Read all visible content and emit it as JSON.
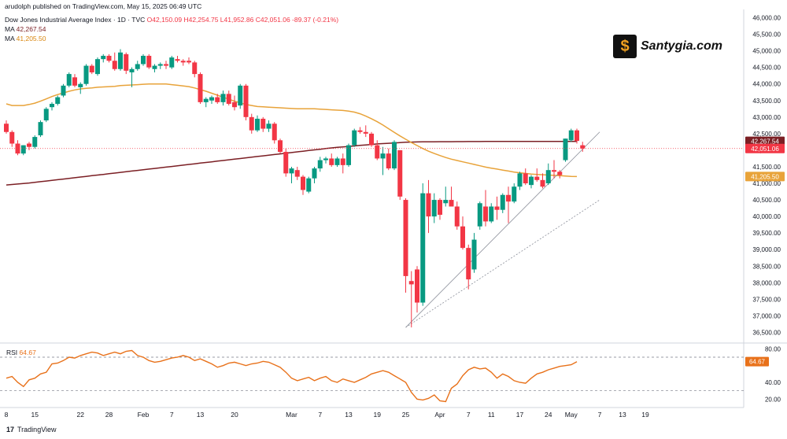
{
  "header": {
    "published": "arudolph published on TradingView.com, May 15, 2025 06:49 UTC",
    "symbol": "Dow Jones Industrial Average Index · 1D · TVC",
    "open": "O42,150.09",
    "high": "H42,254.75",
    "low": "L41,952.86",
    "close": "C42,051.06",
    "change": "-89.37 (-0.21%)",
    "ma1_label": "MA",
    "ma1_value": "42,267.54",
    "ma2_label": "MA",
    "ma2_value": "41,205.50"
  },
  "watermark": {
    "text": "Santygia.com",
    "glyph": "$"
  },
  "footer": {
    "brand": "TradingView",
    "brand_icon": "17"
  },
  "rsi_panel": {
    "label": "RSI",
    "value": "64.67"
  },
  "colors": {
    "up": "#089981",
    "down": "#f23645",
    "ma200": "#7b1f24",
    "ma50": "#e8a33a",
    "rsi": "#e8711a"
  },
  "chart_data": [
    {
      "type": "candlestick",
      "title": "Dow Jones Industrial Average Index · 1D · TVC",
      "ylim": [
        36250,
        46250
      ],
      "y_ticks": [
        "46,000.00",
        "45,500.00",
        "45,000.00",
        "44,500.00",
        "44,000.00",
        "43,500.00",
        "43,000.00",
        "42,500.00",
        "42,000.00",
        "41,500.00",
        "41,000.00",
        "40,500.00",
        "40,000.00",
        "39,500.00",
        "39,000.00",
        "38,500.00",
        "38,000.00",
        "37,500.00",
        "37,000.00",
        "36,500.00"
      ],
      "x_ticks": [
        "8",
        "15",
        "22",
        "28",
        "Feb",
        "7",
        "13",
        "20",
        "Mar",
        "7",
        "13",
        "19",
        "25",
        "Apr",
        "7",
        "11",
        "17",
        "24",
        "May",
        "7",
        "13",
        "19"
      ],
      "price_labels": [
        {
          "text": "42,267.54",
          "value": 42267.54,
          "color": "#7b1f24"
        },
        {
          "text": "42,051.06",
          "value": 42051.06,
          "color": "#f23645"
        },
        {
          "text": "41,205.50",
          "value": 41205.5,
          "color": "#e8a33a"
        }
      ],
      "candles": [
        [
          42800,
          42900,
          42500,
          42550
        ],
        [
          42550,
          42600,
          42100,
          42200
        ],
        [
          42200,
          42300,
          41850,
          41900
        ],
        [
          41900,
          42150,
          41850,
          42150
        ],
        [
          42200,
          42250,
          42000,
          42100
        ],
        [
          42100,
          42450,
          42050,
          42400
        ],
        [
          42450,
          42900,
          42400,
          42850
        ],
        [
          42900,
          43300,
          42850,
          43250
        ],
        [
          43300,
          43450,
          43200,
          43400
        ],
        [
          43400,
          43650,
          43350,
          43600
        ],
        [
          43650,
          44000,
          43600,
          43950
        ],
        [
          43950,
          44350,
          43900,
          44300
        ],
        [
          44200,
          44300,
          43900,
          43950
        ],
        [
          43900,
          44050,
          43700,
          44000
        ],
        [
          44000,
          44600,
          43950,
          44550
        ],
        [
          44550,
          44600,
          44300,
          44350
        ],
        [
          44300,
          44800,
          44250,
          44750
        ],
        [
          44750,
          44900,
          44650,
          44850
        ],
        [
          44850,
          44900,
          44650,
          44700
        ],
        [
          44700,
          44950,
          44400,
          44450
        ],
        [
          44450,
          45050,
          44400,
          44950
        ],
        [
          44900,
          44950,
          44300,
          44400
        ],
        [
          44350,
          44500,
          43900,
          44450
        ],
        [
          44450,
          44700,
          44400,
          44600
        ],
        [
          44600,
          44900,
          44550,
          44850
        ],
        [
          44850,
          44900,
          44450,
          44500
        ],
        [
          44450,
          44600,
          44350,
          44550
        ],
        [
          44550,
          44650,
          44450,
          44600
        ],
        [
          44600,
          44700,
          44450,
          44550
        ],
        [
          44500,
          44850,
          44450,
          44800
        ],
        [
          44750,
          44850,
          44650,
          44700
        ],
        [
          44700,
          44750,
          44550,
          44650
        ],
        [
          44700,
          44800,
          44600,
          44650
        ],
        [
          44650,
          44700,
          44200,
          44300
        ],
        [
          44300,
          44350,
          43400,
          43450
        ],
        [
          43450,
          43600,
          43300,
          43550
        ],
        [
          43500,
          43650,
          43400,
          43600
        ],
        [
          43600,
          43700,
          43400,
          43450
        ],
        [
          43450,
          43800,
          43350,
          43700
        ],
        [
          43700,
          43800,
          43350,
          43400
        ],
        [
          43450,
          43650,
          43200,
          43300
        ],
        [
          43350,
          44000,
          43250,
          43950
        ],
        [
          43950,
          44000,
          42900,
          43000
        ],
        [
          43000,
          43100,
          42500,
          42600
        ],
        [
          42600,
          43050,
          42550,
          42950
        ],
        [
          42950,
          43000,
          42550,
          42650
        ],
        [
          42650,
          42900,
          42550,
          42800
        ],
        [
          42800,
          42850,
          42200,
          42300
        ],
        [
          42300,
          42350,
          41900,
          41950
        ],
        [
          41950,
          42050,
          41200,
          41300
        ],
        [
          41300,
          41500,
          41000,
          41450
        ],
        [
          41400,
          41500,
          41100,
          41200
        ],
        [
          41200,
          41250,
          40650,
          40800
        ],
        [
          40750,
          41200,
          40700,
          41150
        ],
        [
          41150,
          41500,
          41000,
          41450
        ],
        [
          41450,
          41800,
          41350,
          41700
        ],
        [
          41700,
          41800,
          41600,
          41750
        ],
        [
          41750,
          41900,
          41500,
          41550
        ],
        [
          41550,
          41800,
          41500,
          41750
        ],
        [
          41750,
          41900,
          41300,
          41550
        ],
        [
          41550,
          42200,
          41500,
          42150
        ],
        [
          42150,
          42650,
          42100,
          42600
        ],
        [
          42600,
          42700,
          42500,
          42550
        ],
        [
          42550,
          42750,
          42400,
          42500
        ],
        [
          42500,
          42550,
          42100,
          42150
        ],
        [
          42150,
          42300,
          41700,
          41750
        ],
        [
          41750,
          42100,
          41250,
          41900
        ],
        [
          41900,
          42050,
          41400,
          41450
        ],
        [
          41450,
          42300,
          41400,
          42250
        ],
        [
          42000,
          42000,
          40500,
          40600
        ],
        [
          40500,
          40550,
          37700,
          38200
        ],
        [
          38050,
          38350,
          36650,
          37950
        ],
        [
          38400,
          38500,
          37100,
          37400
        ],
        [
          37400,
          41000,
          37300,
          40700
        ],
        [
          40700,
          41100,
          39500,
          40000
        ],
        [
          40000,
          40700,
          39800,
          40500
        ],
        [
          40500,
          40550,
          39900,
          40050
        ],
        [
          40400,
          40900,
          40300,
          40500
        ],
        [
          40500,
          40900,
          40400,
          40300
        ],
        [
          40300,
          40450,
          39600,
          39700
        ],
        [
          39700,
          40000,
          39000,
          39050
        ],
        [
          39050,
          39150,
          37800,
          38100
        ],
        [
          38400,
          39500,
          38300,
          39300
        ],
        [
          39700,
          40450,
          39600,
          40400
        ],
        [
          40300,
          40800,
          39700,
          39850
        ],
        [
          39850,
          40400,
          39800,
          40300
        ],
        [
          40300,
          40600,
          39900,
          40200
        ],
        [
          40200,
          40700,
          40100,
          40650
        ],
        [
          40650,
          40900,
          39800,
          40450
        ],
        [
          40450,
          41000,
          40400,
          40900
        ],
        [
          40900,
          41350,
          40800,
          41300
        ],
        [
          41300,
          41450,
          40950,
          41000
        ],
        [
          40950,
          41250,
          40850,
          41200
        ],
        [
          41200,
          41450,
          41050,
          41100
        ],
        [
          41100,
          41300,
          40850,
          40900
        ],
        [
          41000,
          41600,
          40950,
          41400
        ],
        [
          41400,
          41700,
          41150,
          41350
        ],
        [
          41350,
          41400,
          41150,
          41250
        ],
        [
          41700,
          42350,
          41650,
          42350
        ],
        [
          42300,
          42650,
          42250,
          42600
        ],
        [
          42600,
          42650,
          42200,
          42280
        ],
        [
          42150,
          42254.75,
          41952.86,
          42051.06
        ]
      ],
      "ma50": [
        43400,
        43350,
        43350,
        43350,
        43380,
        43420,
        43480,
        43550,
        43620,
        43680,
        43730,
        43780,
        43820,
        43850,
        43870,
        43880,
        43900,
        43910,
        43920,
        43930,
        43950,
        43960,
        43970,
        43980,
        43990,
        44000,
        44000,
        44000,
        44000,
        43980,
        43960,
        43940,
        43920,
        43880,
        43830,
        43780,
        43720,
        43660,
        43600,
        43540,
        43480,
        43430,
        43380,
        43350,
        43320,
        43310,
        43300,
        43290,
        43280,
        43270,
        43260,
        43250,
        43250,
        43250,
        43250,
        43240,
        43230,
        43220,
        43210,
        43200,
        43180,
        43150,
        43100,
        43030,
        42950,
        42860,
        42760,
        42650,
        42540,
        42430,
        42330,
        42230,
        42140,
        42050,
        41970,
        41900,
        41840,
        41780,
        41730,
        41690,
        41650,
        41610,
        41570,
        41530,
        41490,
        41460,
        41430,
        41400,
        41370,
        41340,
        41320,
        41300,
        41280,
        41270,
        41260,
        41250,
        41240,
        41230,
        41220,
        41210,
        41205.5
      ],
      "ma200": [
        40950,
        40965,
        40980,
        40995,
        41010,
        41030,
        41050,
        41070,
        41090,
        41110,
        41130,
        41150,
        41170,
        41190,
        41210,
        41230,
        41250,
        41270,
        41290,
        41310,
        41330,
        41350,
        41370,
        41390,
        41410,
        41430,
        41450,
        41470,
        41490,
        41510,
        41530,
        41550,
        41570,
        41590,
        41610,
        41630,
        41650,
        41670,
        41690,
        41710,
        41730,
        41750,
        41770,
        41790,
        41810,
        41830,
        41850,
        41870,
        41890,
        41910,
        41930,
        41950,
        41970,
        41990,
        42010,
        42030,
        42050,
        42070,
        42085,
        42100,
        42115,
        42130,
        42145,
        42160,
        42175,
        42190,
        42200,
        42210,
        42220,
        42230,
        42240,
        42245,
        42250,
        42252,
        42254,
        42255,
        42256,
        42257,
        42258,
        42259,
        42260,
        42261,
        42262,
        42263,
        42264,
        42265,
        42265,
        42265,
        42265,
        42265,
        42265,
        42265,
        42265,
        42266,
        42266,
        42266,
        42266,
        42267,
        42267,
        42267.5,
        42267.54
      ],
      "trendlines": [
        {
          "from": [
            70,
            36650
          ],
          "to": [
            104,
            42550
          ]
        },
        {
          "from": [
            70,
            36650
          ],
          "to": [
            104,
            40500
          ]
        }
      ]
    },
    {
      "type": "line",
      "title": "RSI",
      "ylim": [
        10,
        85
      ],
      "y_ticks": [
        "80.00",
        "40.00",
        "20.00"
      ],
      "bands": [
        70,
        30
      ],
      "current_label": "64.67",
      "values": [
        45,
        47,
        40,
        35,
        43,
        45,
        50,
        52,
        62,
        63,
        66,
        70,
        69,
        72,
        74,
        76,
        75,
        72,
        74,
        76,
        74,
        77,
        78,
        72,
        70,
        66,
        64,
        65,
        67,
        69,
        70,
        72,
        70,
        66,
        68,
        65,
        62,
        58,
        60,
        63,
        64,
        62,
        60,
        62,
        63,
        65,
        64,
        61,
        58,
        52,
        45,
        42,
        44,
        46,
        42,
        45,
        47,
        42,
        40,
        44,
        42,
        40,
        43,
        46,
        50,
        52,
        54,
        52,
        48,
        44,
        40,
        28,
        20,
        19,
        21,
        25,
        18,
        17,
        33,
        38,
        48,
        55,
        58,
        56,
        57,
        52,
        45,
        50,
        47,
        42,
        40,
        39,
        45,
        50,
        52,
        55,
        57,
        59,
        60,
        61,
        64.67
      ]
    }
  ]
}
